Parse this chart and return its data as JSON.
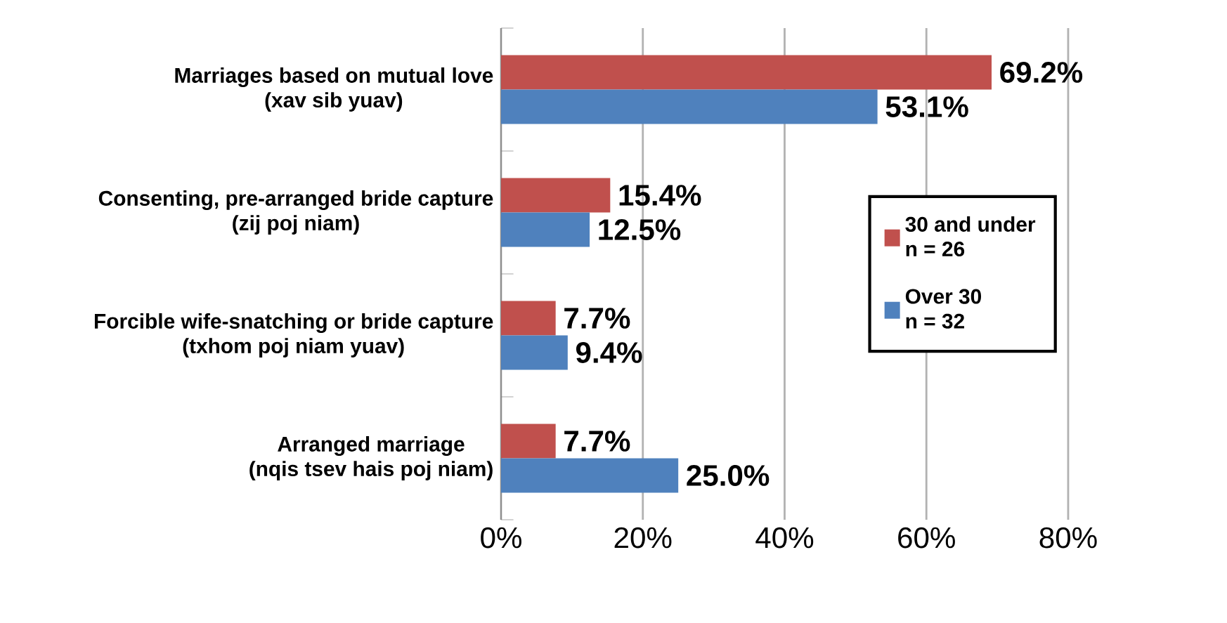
{
  "chart_data": {
    "type": "bar",
    "orientation": "horizontal",
    "categories": [
      "Marriages based on mutual love\n(xav sib yuav)",
      "Consenting, pre-arranged bride capture\n(zij poj niam)",
      "Forcible wife-snatching or bride capture\n(txhom poj niam yuav)",
      "Arranged marriage\n(nqis tsev hais poj niam)"
    ],
    "series": [
      {
        "name": "30 and under\nn = 26",
        "color": "#c0504d",
        "values": [
          69.2,
          15.4,
          7.7,
          7.7
        ],
        "value_labels": [
          "69.2%",
          "15.4%",
          "7.7%",
          "7.7%"
        ]
      },
      {
        "name": "Over 30\nn = 32",
        "color": "#4f81bd",
        "values": [
          53.1,
          12.5,
          9.4,
          25.0
        ],
        "value_labels": [
          "53.1%",
          "12.5%",
          "9.4%",
          "25.0%"
        ]
      }
    ],
    "xlim": [
      0,
      80
    ],
    "xticks": [
      {
        "value": 0,
        "label": "0%"
      },
      {
        "value": 20,
        "label": "20%"
      },
      {
        "value": 40,
        "label": "40%"
      },
      {
        "value": 60,
        "label": "60%"
      },
      {
        "value": 80,
        "label": "80%"
      }
    ],
    "grid": "x",
    "legend": "right"
  }
}
